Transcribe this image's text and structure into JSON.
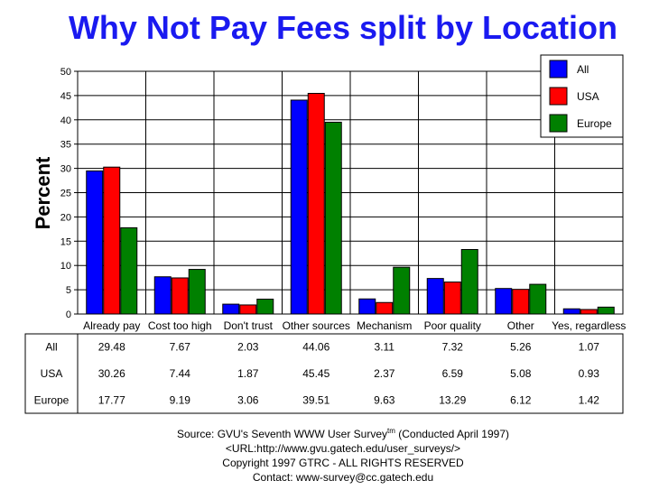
{
  "chart_data": {
    "type": "bar",
    "title": "Why Not Pay Fees split by Location",
    "xlabel": "",
    "ylabel": "Percent",
    "ylim": [
      0,
      50
    ],
    "yticks": [
      0,
      5,
      10,
      15,
      20,
      25,
      30,
      35,
      40,
      45,
      50
    ],
    "grid": true,
    "legend_position": "top-right",
    "categories": [
      "Already pay",
      "Cost too high",
      "Don't trust",
      "Other sources",
      "Mechanism",
      "Poor quality",
      "Other",
      "Yes, regardless"
    ],
    "series": [
      {
        "name": "All",
        "color": "#0000ff",
        "values": [
          29.48,
          7.67,
          2.03,
          44.06,
          3.11,
          7.32,
          5.26,
          1.07
        ]
      },
      {
        "name": "USA",
        "color": "#ff0000",
        "values": [
          30.26,
          7.44,
          1.87,
          45.45,
          2.37,
          6.59,
          5.08,
          0.93
        ]
      },
      {
        "name": "Europe",
        "color": "#008000",
        "values": [
          17.77,
          9.19,
          3.06,
          39.51,
          9.63,
          13.29,
          6.12,
          1.42
        ]
      }
    ],
    "table_values": [
      [
        "29.48",
        "7.67",
        "2.03",
        "44.06",
        "3.11",
        "7.32",
        "5.26",
        "1.07"
      ],
      [
        "30.26",
        "7.44",
        "1.87",
        "45.45",
        "2.37",
        "6.59",
        "5.08",
        "0.93"
      ],
      [
        "17.77",
        "9.19",
        "3.06",
        "39.51",
        "9.63",
        "13.29",
        "6.12",
        "1.42"
      ]
    ]
  },
  "footer": {
    "source": "Source: GVU's Seventh WWW User Survey",
    "tm": "tm",
    "conducted": " (Conducted April 1997)",
    "url": "<URL:http://www.gvu.gatech.edu/user_surveys/>",
    "copyright": "Copyright 1997 GTRC - ALL RIGHTS RESERVED",
    "contact": "Contact: www-survey@cc.gatech.edu"
  }
}
